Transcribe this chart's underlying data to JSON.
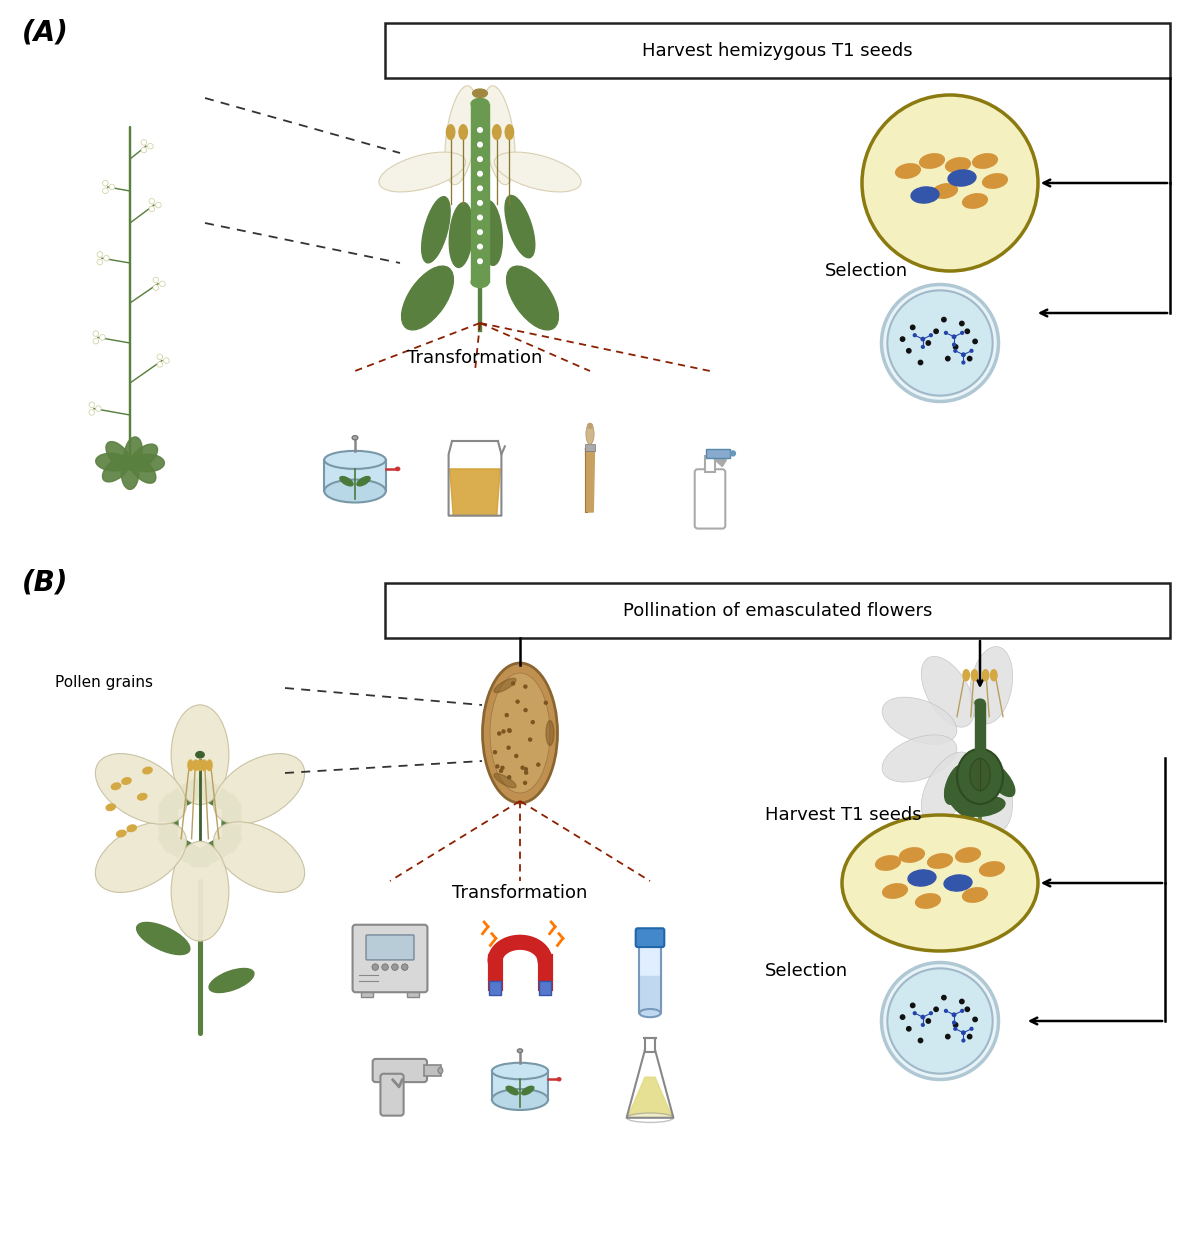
{
  "panel_A_label": "(A)",
  "panel_B_label": "(B)",
  "panel_A_harvest_text": "Harvest hemizygous T1 seeds",
  "panel_A_transform_text": "Transformation",
  "panel_A_selection_text": "Selection",
  "panel_B_pollination_text": "Pollination of emasculated flowers",
  "panel_B_pollen_text": "Pollen grains",
  "panel_B_transform_text": "Transformation",
  "panel_B_harvest_text": "Harvest T1 seeds",
  "panel_B_selection_text": "Selection",
  "bg_color": "#ffffff",
  "seed_orange": "#D4943A",
  "seed_blue": "#3355AA",
  "seed_bg": "#F5F0C0",
  "seed_border": "#8B7A10",
  "petri_bg": "#D0E8F0",
  "petri_border": "#90B8CC",
  "arrow_color": "#000000",
  "dashed_black": "#000000",
  "dashed_red": "#8B2000",
  "plant_green": "#5A8040",
  "plant_dark": "#3D6030",
  "flower_cream": "#EDE8D0",
  "flower_light": "#F5F2E8",
  "stem_green": "#6A9050"
}
